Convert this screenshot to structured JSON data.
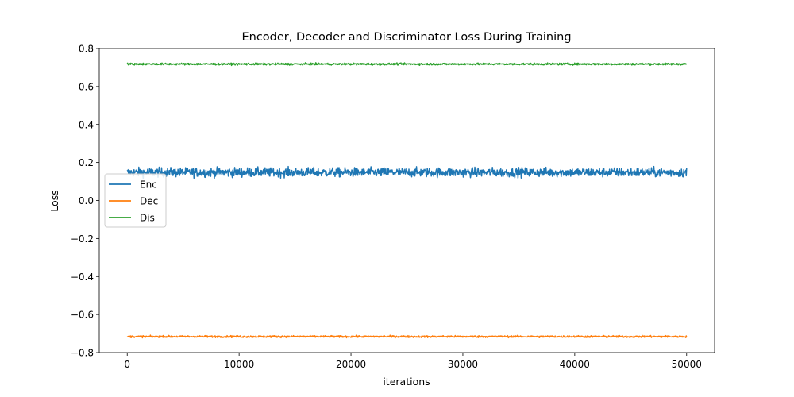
{
  "chart_data": {
    "type": "line",
    "title": "Encoder, Decoder and Discriminator Loss During Training",
    "xlabel": "iterations",
    "ylabel": "Loss",
    "xlim": [
      -2500,
      52500
    ],
    "ylim": [
      -0.8,
      0.8
    ],
    "xticks": [
      0,
      10000,
      20000,
      30000,
      40000,
      50000
    ],
    "xtick_labels": [
      "0",
      "10000",
      "20000",
      "30000",
      "40000",
      "50000"
    ],
    "yticks": [
      -0.8,
      -0.6,
      -0.4,
      -0.2,
      0.0,
      0.2,
      0.4,
      0.6,
      0.8
    ],
    "ytick_labels": [
      "−0.8",
      "−0.6",
      "−0.4",
      "−0.2",
      "0.0",
      "0.2",
      "0.4",
      "0.6",
      "0.8"
    ],
    "grid": false,
    "legend_position": "center-left",
    "x_range": [
      0,
      50000
    ],
    "series": [
      {
        "name": "Enc",
        "color": "#1f77b4",
        "mean": 0.148,
        "noise": 0.012
      },
      {
        "name": "Dec",
        "color": "#ff7f0e",
        "mean": -0.716,
        "noise": 0.0025
      },
      {
        "name": "Dis",
        "color": "#2ca02c",
        "mean": 0.718,
        "noise": 0.0025
      }
    ]
  }
}
